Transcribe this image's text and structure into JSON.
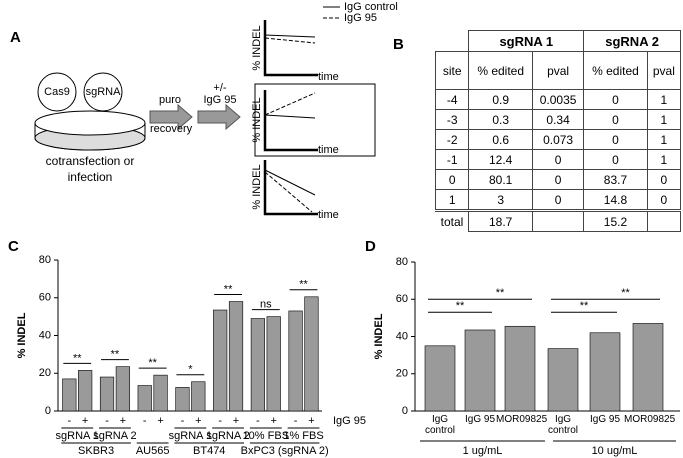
{
  "panel_a": {
    "label": "A",
    "circles": [
      "Cas9",
      "sgRNA"
    ],
    "caption": [
      "cotransfection or",
      "infection"
    ],
    "step1": [
      "puro",
      "recovery"
    ],
    "step2": [
      "+/-",
      "IgG 95"
    ],
    "y_label": "% INDEL",
    "x_label": "time",
    "legend": [
      "IgG control",
      "IgG 95"
    ]
  },
  "panel_b": {
    "label": "B",
    "groups": [
      "sgRNA 1",
      "sgRNA 2"
    ],
    "columns": [
      "site",
      "% edited",
      "pval",
      "% edited",
      "pval"
    ],
    "rows": [
      [
        "-4",
        "0.9",
        "0.0035",
        "0",
        "1"
      ],
      [
        "-3",
        "0.3",
        "0.34",
        "0",
        "1"
      ],
      [
        "-2",
        "0.6",
        "0.073",
        "0",
        "1"
      ],
      [
        "-1",
        "12.4",
        "0",
        "0",
        "1"
      ],
      [
        "0",
        "80.1",
        "0",
        "83.7",
        "0"
      ],
      [
        "1",
        "3",
        "0",
        "14.8",
        "0"
      ]
    ],
    "total": {
      "label": "total",
      "sgRNA1": "18.7",
      "sgRNA2": "15.2"
    }
  },
  "chart_data": [
    {
      "type": "bar",
      "label": "C",
      "y_label": "% INDEL",
      "x_label": "IgG 95",
      "categories": [
        "-",
        "+",
        "-",
        "+",
        "-",
        "+",
        "-",
        "+",
        "-",
        "+",
        "-",
        "+",
        "-",
        "+"
      ],
      "values": [
        17,
        21.5,
        18,
        23.5,
        13.5,
        19,
        12.5,
        15.5,
        53.5,
        58,
        49,
        50,
        53,
        60.5
      ],
      "subgroups": [
        "sgRNA 1",
        "sgRNA 2",
        "sgRNA 1",
        "sgRNA 2",
        "10% FBS",
        "1% FBS"
      ],
      "groups": [
        "SKBR3",
        "AU565",
        "BT474",
        "BxPC3 (sgRNA 2)"
      ],
      "significance": [
        "**",
        "**",
        "**",
        "*",
        "**",
        "ns",
        "**"
      ],
      "color": "#9a9a9a",
      "ylim": [
        0,
        80
      ],
      "yticks": [
        0,
        20,
        40,
        60,
        80
      ]
    },
    {
      "type": "bar",
      "label": "D",
      "y_label": "% INDEL",
      "categories": [
        "IgG control",
        "IgG 95",
        "MOR09825",
        "IgG control",
        "IgG 95",
        "MOR09825"
      ],
      "values": [
        35,
        43.5,
        45.5,
        33.5,
        42,
        47
      ],
      "groups": [
        "1 ug/mL",
        "10 ug/mL"
      ],
      "significance": [
        "**",
        "**",
        "**",
        "**"
      ],
      "color": "#9a9a9a",
      "ylim": [
        0,
        80
      ],
      "yticks": [
        0,
        20,
        40,
        60,
        80
      ]
    }
  ]
}
